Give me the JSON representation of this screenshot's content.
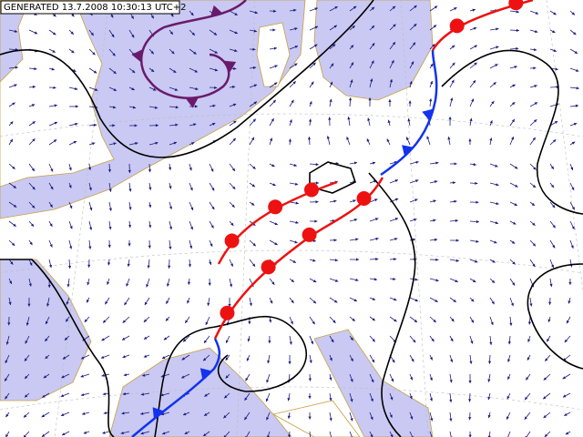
{
  "header": {
    "generated": "GENERATED 13.7.2008 10:30:13 UTC+2"
  }
}
